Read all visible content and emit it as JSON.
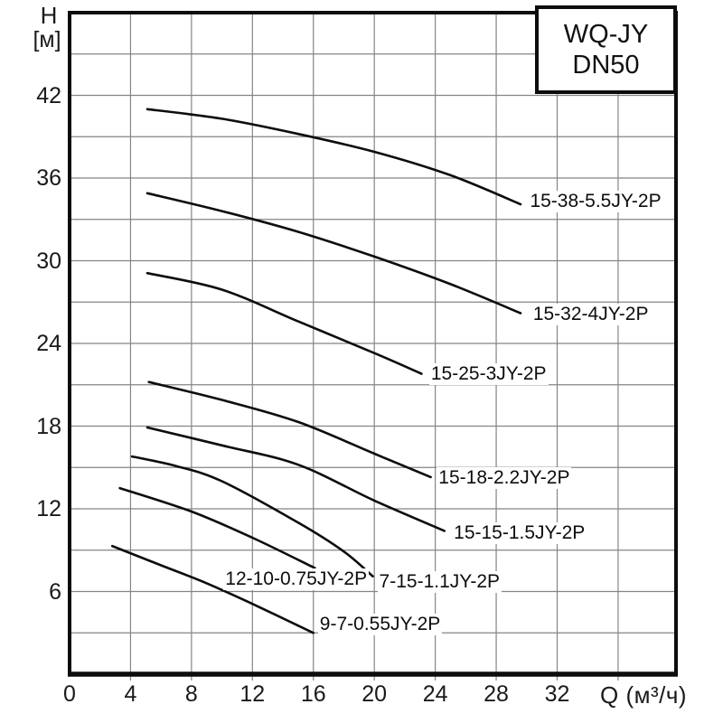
{
  "title_box": {
    "line1": "WQ-JY",
    "line2": "DN50"
  },
  "y_axis": {
    "symbol": "H",
    "unit": "[м]",
    "ticks": [
      42,
      36,
      30,
      24,
      18,
      12,
      6
    ]
  },
  "x_axis": {
    "ticks": [
      0,
      4,
      8,
      12,
      16,
      20,
      24,
      28,
      32
    ],
    "unit": "Q (м³/ч)"
  },
  "colors": {
    "curve": "#0d0d0d",
    "grid": "#858585",
    "frame": "#0d0d0d",
    "background": "#ffffff"
  },
  "chart_data": {
    "type": "line",
    "title": "WQ-JY DN50",
    "xlabel": "Q (м³/ч)",
    "ylabel": "H [м]",
    "xlim": [
      0,
      39.8
    ],
    "ylim": [
      0,
      48
    ],
    "x_ticks": [
      0,
      4,
      8,
      12,
      16,
      20,
      24,
      28,
      32
    ],
    "y_ticks": [
      42,
      36,
      30,
      24,
      18,
      12,
      6
    ],
    "grid": true,
    "x_grid_step": 4,
    "x_grid_max": 36,
    "y_grid_step": 3,
    "y_grid_max": 45,
    "legend_position": "inline-labels",
    "series": [
      {
        "name": "15-38-5.5JY-2P",
        "label_x": 30.1,
        "label_y": 34.3,
        "points": [
          [
            5.1,
            41.0
          ],
          [
            10,
            40.3
          ],
          [
            15,
            39.2
          ],
          [
            20,
            37.9
          ],
          [
            25,
            36.2
          ],
          [
            29.6,
            34.1
          ]
        ]
      },
      {
        "name": "15-32-4JY-2P",
        "label_x": 30.3,
        "label_y": 26.1,
        "points": [
          [
            5.1,
            34.9
          ],
          [
            10,
            33.6
          ],
          [
            15,
            32.1
          ],
          [
            20,
            30.3
          ],
          [
            25,
            28.3
          ],
          [
            29.6,
            26.2
          ]
        ]
      },
      {
        "name": "15-25-3JY-2P",
        "label_x": 23.6,
        "label_y": 21.8,
        "points": [
          [
            5.1,
            29.1
          ],
          [
            10,
            27.9
          ],
          [
            15,
            25.6
          ],
          [
            20,
            23.3
          ],
          [
            23.1,
            21.8
          ]
        ]
      },
      {
        "name": "15-18-2.2JY-2P",
        "label_x": 24.1,
        "label_y": 14.2,
        "points": [
          [
            5.2,
            21.2
          ],
          [
            10,
            19.9
          ],
          [
            15,
            18.3
          ],
          [
            20,
            16.0
          ],
          [
            23.7,
            14.3
          ]
        ]
      },
      {
        "name": "15-15-1.5JY-2P",
        "label_x": 25.1,
        "label_y": 10.2,
        "points": [
          [
            5.1,
            17.9
          ],
          [
            10,
            16.6
          ],
          [
            15,
            15.2
          ],
          [
            20,
            12.6
          ],
          [
            24.6,
            10.4
          ]
        ]
      },
      {
        "name": "7-15-1.1JY-2P",
        "label_x": 20.2,
        "label_y": 6.7,
        "points": [
          [
            4.1,
            15.8
          ],
          [
            7,
            15.1
          ],
          [
            10,
            14.0
          ],
          [
            15,
            11.0
          ],
          [
            18,
            8.9
          ],
          [
            19.9,
            7.1
          ]
        ]
      },
      {
        "name": "12-10-0.75JY-2P",
        "label_x": 10.1,
        "label_y": 6.9,
        "points": [
          [
            3.3,
            13.5
          ],
          [
            8,
            11.8
          ],
          [
            12,
            9.9
          ],
          [
            16.1,
            7.7
          ]
        ]
      },
      {
        "name": "9-7-0.55JY-2P",
        "label_x": 16.3,
        "label_y": 3.6,
        "points": [
          [
            2.8,
            9.3
          ],
          [
            6,
            7.9
          ],
          [
            9,
            6.6
          ],
          [
            12,
            5.1
          ],
          [
            16,
            3.0
          ]
        ]
      }
    ]
  }
}
